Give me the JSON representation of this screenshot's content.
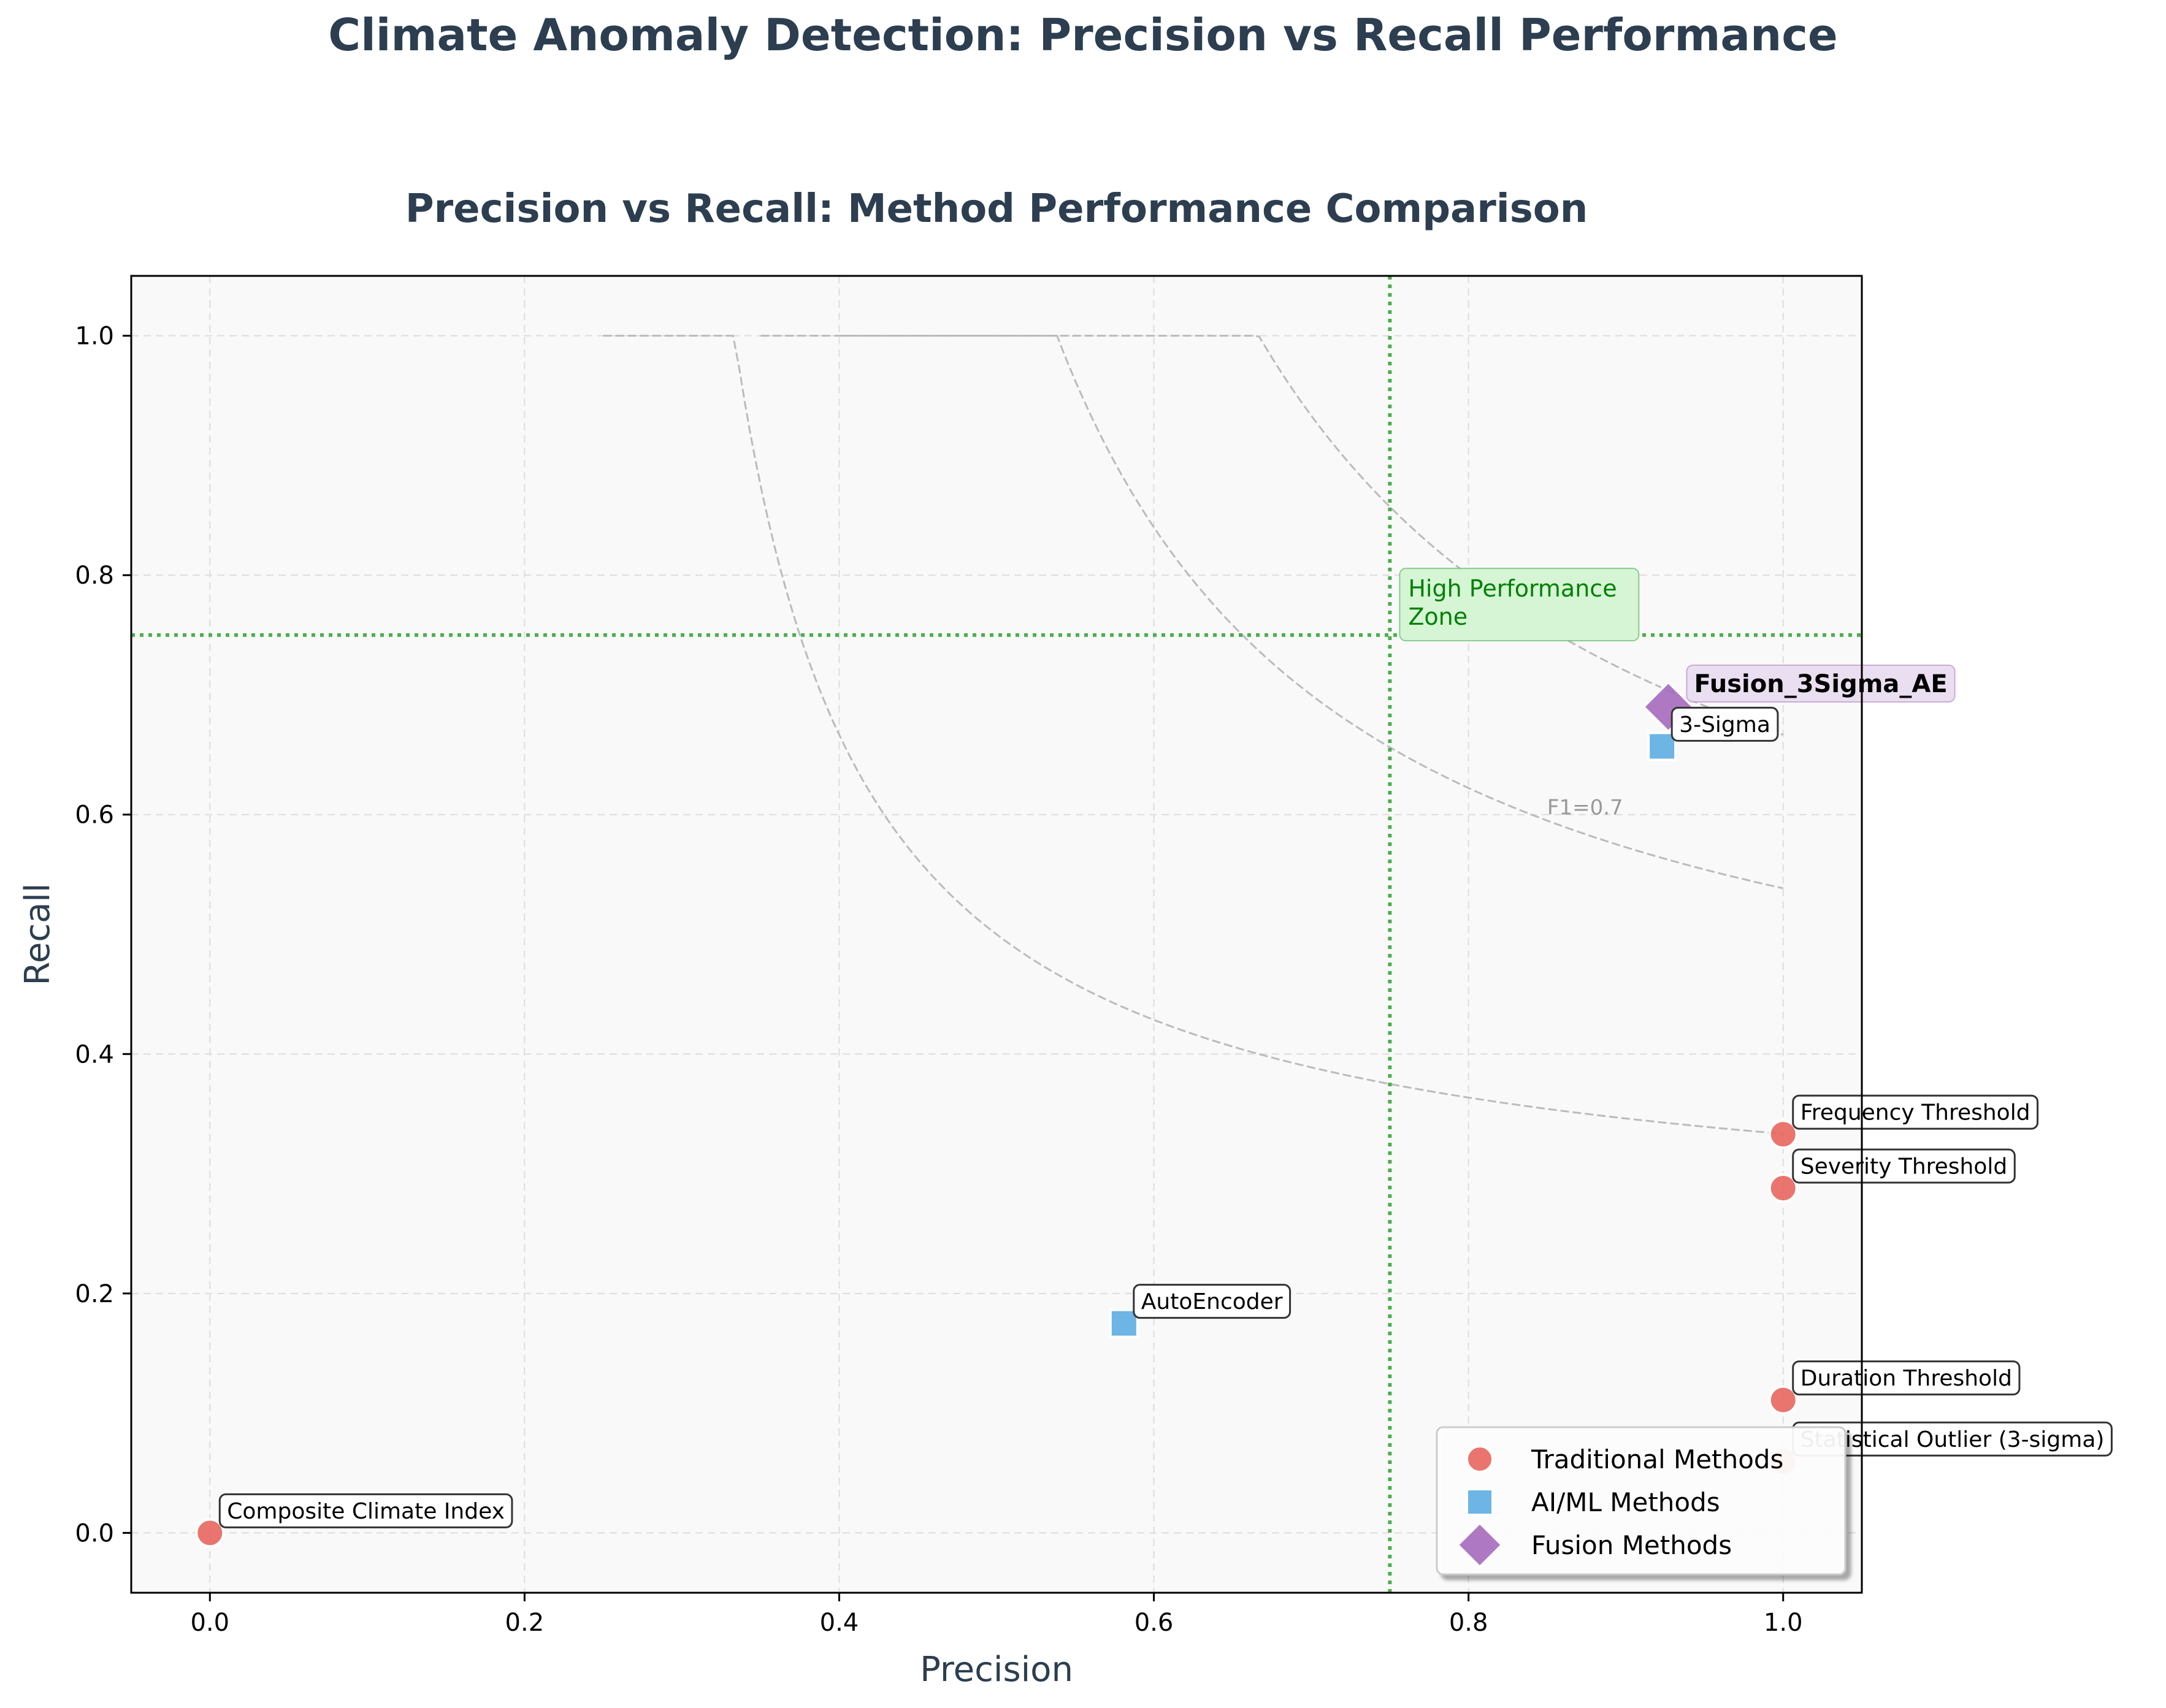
{
  "figure": {
    "suptitle": "Climate Anomaly Detection: Precision vs Recall Performance"
  },
  "chart_data": {
    "type": "scatter",
    "title": "Precision vs Recall: Method Performance Comparison",
    "xlabel": "Precision",
    "ylabel": "Recall",
    "xlim": [
      -0.05,
      1.05
    ],
    "ylim": [
      -0.05,
      1.05
    ],
    "xticks": [
      0.0,
      0.2,
      0.4,
      0.6,
      0.8,
      1.0
    ],
    "yticks": [
      0.0,
      0.2,
      0.4,
      0.6,
      0.8,
      1.0
    ],
    "tick_labels": [
      "0.0",
      "0.2",
      "0.4",
      "0.6",
      "0.8",
      "1.0"
    ],
    "grid": true,
    "legend_position": "lower-right",
    "series": [
      {
        "name": "Traditional Methods",
        "marker": "circle",
        "color": "#e8665e",
        "points": [
          {
            "label": "Composite Climate Index",
            "precision": 0.0,
            "recall": 0.0
          },
          {
            "label": "Frequency Threshold",
            "precision": 1.0,
            "recall": 0.333
          },
          {
            "label": "Severity Threshold",
            "precision": 1.0,
            "recall": 0.288
          },
          {
            "label": "Duration Threshold",
            "precision": 1.0,
            "recall": 0.111
          },
          {
            "label": "Statistical Outlier (3-sigma)",
            "precision": 1.0,
            "recall": 0.06
          }
        ]
      },
      {
        "name": "AI/ML Methods",
        "marker": "square",
        "color": "#5dade2",
        "points": [
          {
            "label": "AutoEncoder",
            "precision": 0.581,
            "recall": 0.175
          },
          {
            "label": "3-Sigma",
            "precision": 0.923,
            "recall": 0.657
          }
        ]
      },
      {
        "name": "Fusion Methods",
        "marker": "diamond",
        "color": "#a569bd",
        "points": [
          {
            "label": "Fusion_3Sigma_AE",
            "precision": 0.927,
            "recall": 0.69
          }
        ]
      }
    ],
    "f1_iso_curves": [
      0.5,
      0.7,
      0.8
    ],
    "f1_curve_label": "F1=0.7",
    "threshold_lines": {
      "precision": 0.75,
      "recall": 0.75,
      "color": "#4caf50"
    },
    "zone_label": "High Performance\nZone",
    "zone_label_color": "#008000",
    "highlight_label_fill": "#e8daef"
  }
}
